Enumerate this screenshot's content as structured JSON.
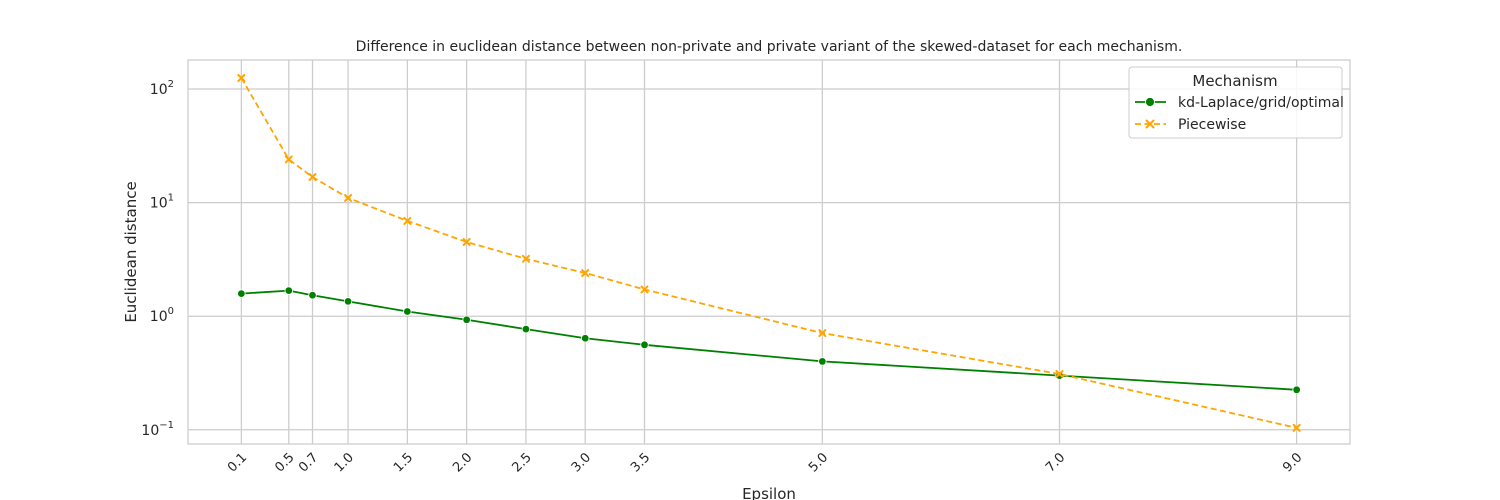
{
  "chart_data": {
    "type": "line",
    "title": "Difference in euclidean distance between non-private and private variant of the skewed-dataset for each mechanism.",
    "xlabel": "Epsilon",
    "ylabel": "Euclidean distance",
    "x": [
      0.1,
      0.5,
      0.7,
      1.0,
      1.5,
      2.0,
      2.5,
      3.0,
      3.5,
      5.0,
      7.0,
      9.0
    ],
    "x_tick_labels": [
      "0.1",
      "0.5",
      "0.7",
      "1.0",
      "1.5",
      "2.0",
      "2.5",
      "3.0",
      "3.5",
      "5.0",
      "7.0",
      "9.0"
    ],
    "xlim": [
      -0.35,
      9.45
    ],
    "y_scale": "log",
    "ylim": [
      0.075,
      180
    ],
    "y_ticks": [
      {
        "value": 0.1,
        "base": "10",
        "exp": "−1"
      },
      {
        "value": 1,
        "base": "10",
        "exp": "0"
      },
      {
        "value": 10,
        "base": "10",
        "exp": "1"
      },
      {
        "value": 100,
        "base": "10",
        "exp": "2"
      }
    ],
    "grid": true,
    "legend": {
      "title": "Mechanism",
      "placement": "top-right"
    },
    "series": [
      {
        "name": "kd-Laplace/grid/optimal",
        "color": "#008000",
        "marker": "circle",
        "dash": "solid",
        "values": [
          1.58,
          1.68,
          1.53,
          1.35,
          1.1,
          0.93,
          0.77,
          0.64,
          0.56,
          0.4,
          0.3,
          0.225
        ]
      },
      {
        "name": "Piecewise",
        "color": "#FFA500",
        "marker": "x",
        "dash": "dashed",
        "values": [
          125,
          24,
          16.8,
          11.0,
          6.9,
          4.5,
          3.2,
          2.4,
          1.72,
          0.71,
          0.31,
          0.104
        ]
      }
    ]
  }
}
